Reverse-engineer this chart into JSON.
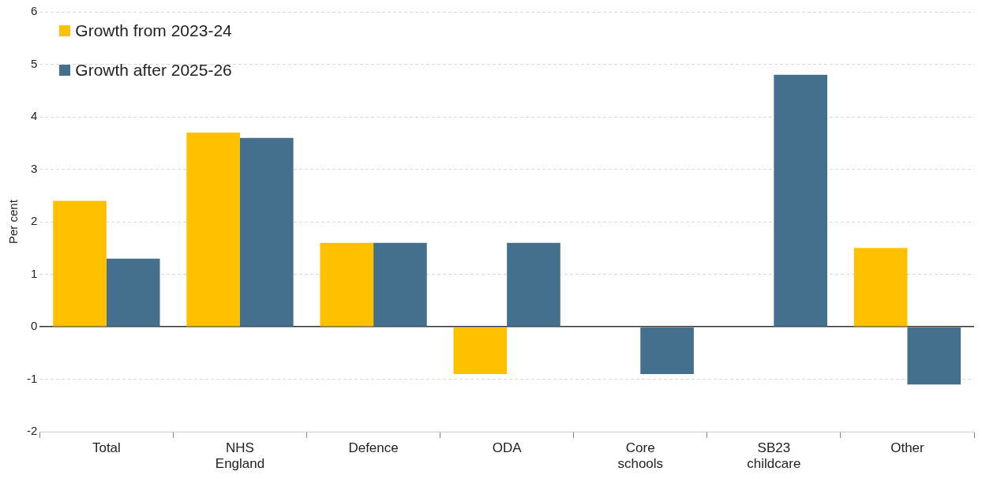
{
  "chart_data": {
    "type": "bar",
    "ylabel": "Per cent",
    "categories": [
      "Total",
      "NHS England",
      "Defence",
      "ODA",
      "Core schools",
      "SB23 childcare",
      "Other"
    ],
    "series": [
      {
        "name": "Growth from 2023-24",
        "color": "#ffc000",
        "values": [
          2.4,
          3.7,
          1.6,
          -0.9,
          0.0,
          null,
          1.5
        ]
      },
      {
        "name": "Growth after 2025-26",
        "color": "#44708e",
        "values": [
          1.3,
          3.6,
          1.6,
          1.6,
          -0.9,
          4.8,
          -1.1
        ]
      }
    ],
    "ylim": [
      -2,
      6
    ],
    "yticks": [
      -2,
      -1,
      0,
      1,
      2,
      3,
      4,
      5,
      6
    ],
    "grid": "y",
    "legend": "top left"
  }
}
